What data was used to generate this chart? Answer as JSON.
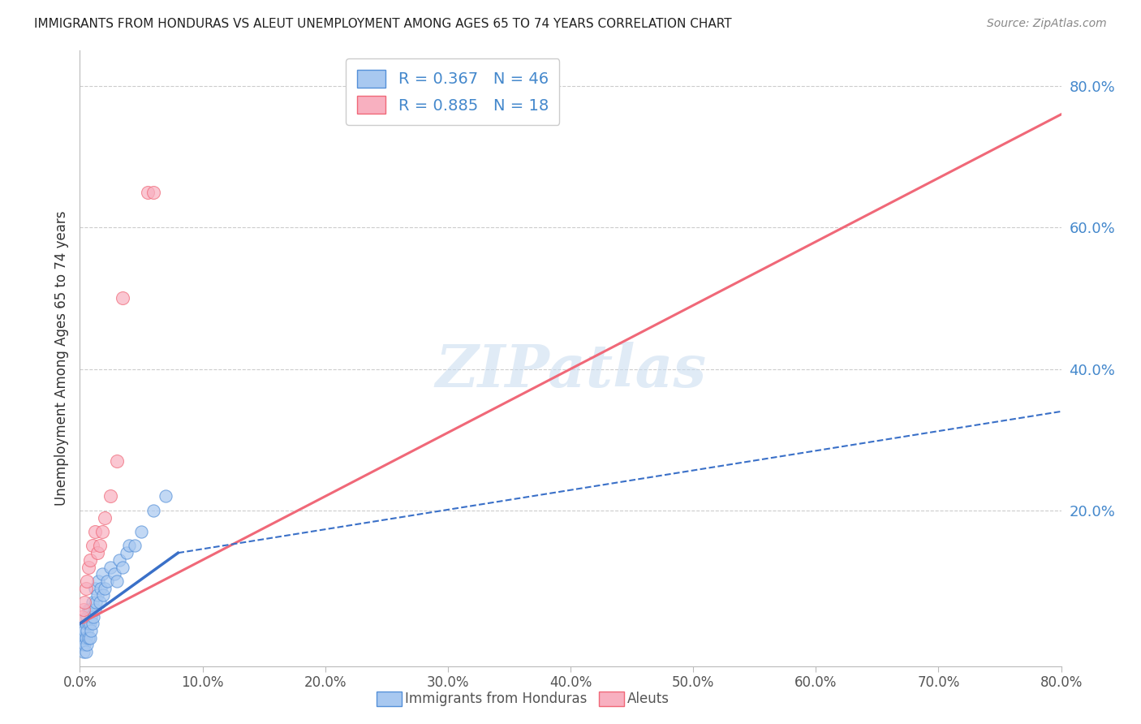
{
  "title": "IMMIGRANTS FROM HONDURAS VS ALEUT UNEMPLOYMENT AMONG AGES 65 TO 74 YEARS CORRELATION CHART",
  "source": "Source: ZipAtlas.com",
  "ylabel": "Unemployment Among Ages 65 to 74 years",
  "xmin": 0.0,
  "xmax": 0.8,
  "ymin": -0.02,
  "ymax": 0.85,
  "x_tick_labels": [
    "0.0%",
    "10.0%",
    "20.0%",
    "30.0%",
    "40.0%",
    "50.0%",
    "60.0%",
    "70.0%",
    "80.0%"
  ],
  "x_tick_positions": [
    0.0,
    0.1,
    0.2,
    0.3,
    0.4,
    0.5,
    0.6,
    0.7,
    0.8
  ],
  "y_tick_labels": [
    "80.0%",
    "60.0%",
    "40.0%",
    "20.0%"
  ],
  "y_tick_positions": [
    0.8,
    0.6,
    0.4,
    0.2
  ],
  "blue_color": "#A8C8F0",
  "pink_color": "#F8B0C0",
  "blue_edge_color": "#5590D8",
  "pink_edge_color": "#F06878",
  "blue_line_color": "#3A70C8",
  "pink_line_color": "#F06878",
  "background_color": "#FFFFFF",
  "watermark_text": "ZIPatlas",
  "blue_scatter_x": [
    0.001,
    0.002,
    0.002,
    0.003,
    0.003,
    0.004,
    0.004,
    0.005,
    0.005,
    0.005,
    0.006,
    0.006,
    0.006,
    0.007,
    0.007,
    0.007,
    0.008,
    0.008,
    0.008,
    0.009,
    0.009,
    0.01,
    0.01,
    0.011,
    0.012,
    0.012,
    0.013,
    0.014,
    0.015,
    0.016,
    0.017,
    0.018,
    0.019,
    0.02,
    0.022,
    0.025,
    0.028,
    0.03,
    0.032,
    0.035,
    0.038,
    0.04,
    0.045,
    0.05,
    0.06,
    0.07
  ],
  "blue_scatter_y": [
    0.02,
    0.01,
    0.03,
    0.0,
    0.02,
    0.01,
    0.03,
    0.0,
    0.02,
    0.04,
    0.01,
    0.03,
    0.05,
    0.02,
    0.04,
    0.06,
    0.02,
    0.04,
    0.06,
    0.03,
    0.05,
    0.04,
    0.07,
    0.05,
    0.06,
    0.09,
    0.07,
    0.08,
    0.1,
    0.07,
    0.09,
    0.11,
    0.08,
    0.09,
    0.1,
    0.12,
    0.11,
    0.1,
    0.13,
    0.12,
    0.14,
    0.15,
    0.15,
    0.17,
    0.2,
    0.22
  ],
  "pink_scatter_x": [
    0.002,
    0.003,
    0.004,
    0.005,
    0.006,
    0.007,
    0.008,
    0.01,
    0.012,
    0.014,
    0.016,
    0.018,
    0.02,
    0.025,
    0.03,
    0.035,
    0.055,
    0.06
  ],
  "pink_scatter_y": [
    0.05,
    0.06,
    0.07,
    0.09,
    0.1,
    0.12,
    0.13,
    0.15,
    0.17,
    0.14,
    0.15,
    0.17,
    0.19,
    0.22,
    0.27,
    0.5,
    0.65,
    0.65
  ],
  "blue_line_x0": 0.0,
  "blue_line_x1": 0.08,
  "blue_line_x2": 0.8,
  "blue_line_y0": 0.04,
  "blue_line_y1": 0.14,
  "blue_line_y2": 0.34,
  "pink_line_x0": 0.0,
  "pink_line_x1": 0.8,
  "pink_line_y0": 0.04,
  "pink_line_y1": 0.76,
  "marker_size": 120
}
